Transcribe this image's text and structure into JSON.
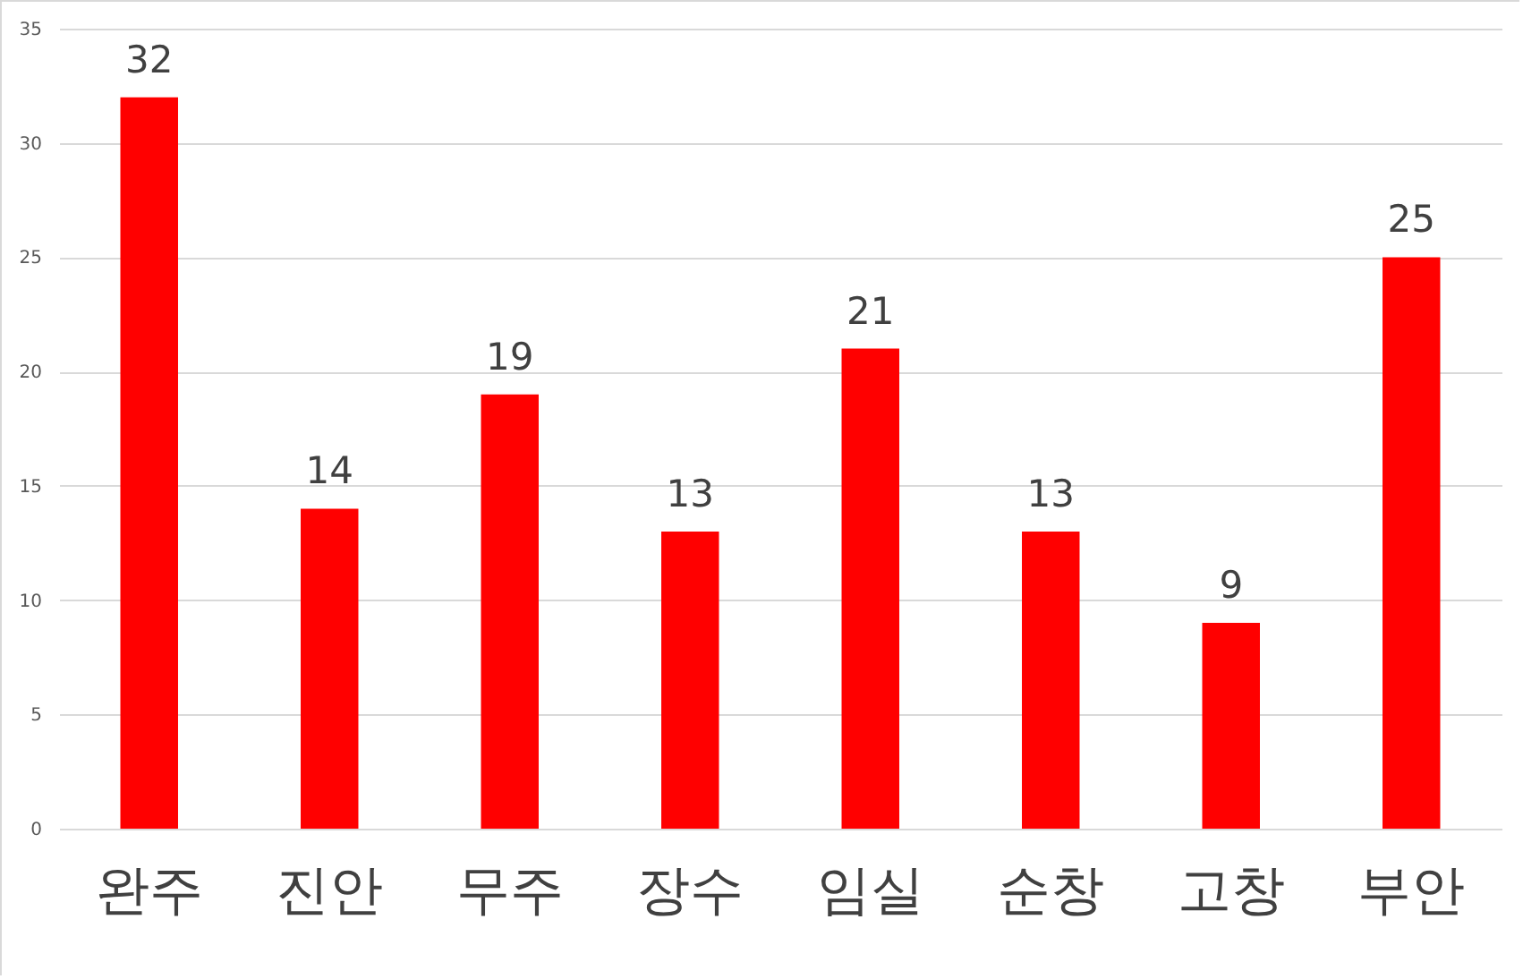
{
  "chart_data": {
    "type": "bar",
    "categories": [
      "완주",
      "진안",
      "무주",
      "장수",
      "임실",
      "순창",
      "고창",
      "부안"
    ],
    "values": [
      32,
      14,
      19,
      13,
      21,
      13,
      9,
      25
    ],
    "color": "#ff0000",
    "ylim": [
      0,
      35
    ],
    "yticks": [
      0,
      5,
      10,
      15,
      20,
      25,
      30,
      35
    ],
    "grid": "y",
    "data_labels": true
  }
}
